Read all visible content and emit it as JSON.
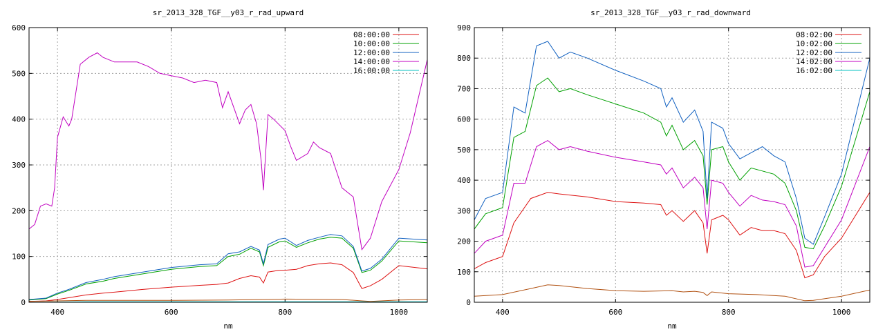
{
  "chart_data": [
    {
      "type": "line",
      "title": "sr_2013_328_TGF__y03_r_rad_upward",
      "xlabel": "nm",
      "ylabel": "",
      "xlim": [
        350,
        1050
      ],
      "ylim": [
        0,
        600
      ],
      "xticks": [
        400,
        600,
        800,
        1000
      ],
      "yticks": [
        0,
        100,
        200,
        300,
        400,
        500,
        600
      ],
      "grid": true,
      "legend_position": "top-right",
      "series": [
        {
          "name": "08:00:00",
          "color": "#dd1111",
          "x": [
            350,
            380,
            400,
            420,
            450,
            480,
            500,
            550,
            600,
            650,
            680,
            700,
            720,
            740,
            755,
            762,
            770,
            790,
            800,
            820,
            840,
            860,
            880,
            900,
            920,
            935,
            950,
            970,
            1000,
            1050
          ],
          "y": [
            2,
            3,
            6,
            10,
            16,
            20,
            22,
            28,
            33,
            37,
            39,
            42,
            52,
            58,
            55,
            42,
            66,
            70,
            70,
            72,
            80,
            84,
            86,
            82,
            65,
            30,
            36,
            50,
            80,
            73
          ]
        },
        {
          "name": "10:00:00",
          "color": "#00a000",
          "x": [
            350,
            380,
            400,
            420,
            450,
            480,
            500,
            550,
            600,
            650,
            680,
            700,
            720,
            740,
            755,
            762,
            770,
            790,
            800,
            820,
            840,
            860,
            880,
            900,
            920,
            935,
            950,
            970,
            1000,
            1050
          ],
          "y": [
            5,
            8,
            18,
            26,
            40,
            46,
            52,
            62,
            72,
            78,
            80,
            100,
            105,
            118,
            110,
            80,
            120,
            132,
            134,
            120,
            130,
            138,
            142,
            140,
            118,
            65,
            70,
            90,
            134,
            130
          ]
        },
        {
          "name": "12:00:00",
          "color": "#1060c0",
          "x": [
            350,
            380,
            400,
            420,
            450,
            480,
            500,
            550,
            600,
            650,
            680,
            700,
            720,
            740,
            755,
            762,
            770,
            790,
            800,
            820,
            840,
            860,
            880,
            900,
            920,
            935,
            950,
            970,
            1000,
            1050
          ],
          "y": [
            6,
            9,
            20,
            28,
            43,
            50,
            56,
            66,
            76,
            82,
            84,
            106,
            110,
            122,
            114,
            84,
            126,
            138,
            140,
            124,
            135,
            142,
            148,
            145,
            122,
            68,
            74,
            94,
            140,
            136
          ]
        },
        {
          "name": "14:00:00",
          "color": "#c000c0",
          "x": [
            350,
            360,
            370,
            380,
            390,
            395,
            400,
            410,
            420,
            425,
            440,
            455,
            470,
            480,
            500,
            520,
            540,
            560,
            580,
            600,
            620,
            640,
            660,
            680,
            690,
            700,
            720,
            730,
            740,
            750,
            758,
            762,
            770,
            780,
            800,
            810,
            820,
            840,
            850,
            860,
            880,
            900,
            920,
            935,
            950,
            970,
            1000,
            1020,
            1050
          ],
          "y": [
            160,
            170,
            210,
            215,
            210,
            250,
            360,
            405,
            385,
            400,
            520,
            535,
            545,
            535,
            525,
            525,
            525,
            515,
            500,
            495,
            490,
            480,
            485,
            480,
            425,
            460,
            390,
            420,
            432,
            390,
            310,
            245,
            410,
            400,
            375,
            340,
            310,
            325,
            350,
            338,
            325,
            250,
            230,
            115,
            140,
            220,
            290,
            370,
            530
          ]
        },
        {
          "name": "16:00:00",
          "color": "#00c0c0",
          "x": [
            350,
            400,
            450,
            500,
            600,
            700,
            800,
            900,
            1000,
            1050
          ],
          "y": [
            0,
            0.5,
            1,
            1,
            1,
            1,
            1,
            1,
            1,
            1
          ]
        },
        {
          "name": "",
          "color": "#b05010",
          "x": [
            350,
            400,
            450,
            500,
            600,
            700,
            760,
            800,
            900,
            935,
            950,
            1000,
            1050
          ],
          "y": [
            2,
            3,
            4,
            4,
            4,
            5,
            6,
            7,
            6,
            3,
            2,
            5,
            6
          ]
        }
      ]
    },
    {
      "type": "line",
      "title": "sr_2013_328_TGF__y03_r_rad_downward",
      "xlabel": "nm",
      "ylabel": "",
      "xlim": [
        350,
        1050
      ],
      "ylim": [
        0,
        900
      ],
      "xticks": [
        400,
        600,
        800,
        1000
      ],
      "yticks": [
        0,
        100,
        200,
        300,
        400,
        500,
        600,
        700,
        800,
        900
      ],
      "grid": true,
      "legend_position": "top-right",
      "series": [
        {
          "name": "08:02:00",
          "color": "#dd1111",
          "x": [
            350,
            370,
            400,
            420,
            450,
            480,
            500,
            550,
            600,
            650,
            680,
            690,
            700,
            720,
            740,
            755,
            762,
            770,
            790,
            800,
            820,
            840,
            860,
            880,
            900,
            920,
            935,
            950,
            970,
            1000,
            1050
          ],
          "y": [
            110,
            130,
            150,
            260,
            340,
            360,
            355,
            345,
            330,
            325,
            320,
            285,
            300,
            265,
            300,
            260,
            160,
            270,
            285,
            270,
            220,
            245,
            235,
            235,
            225,
            170,
            80,
            90,
            150,
            210,
            360
          ]
        },
        {
          "name": "10:02:00",
          "color": "#00a000",
          "x": [
            350,
            370,
            400,
            420,
            440,
            460,
            480,
            500,
            520,
            550,
            600,
            650,
            680,
            690,
            700,
            720,
            740,
            755,
            762,
            770,
            790,
            800,
            820,
            840,
            860,
            880,
            900,
            920,
            935,
            950,
            970,
            1000,
            1050
          ],
          "y": [
            240,
            290,
            310,
            540,
            560,
            710,
            735,
            690,
            700,
            680,
            650,
            620,
            590,
            545,
            580,
            500,
            530,
            480,
            320,
            500,
            510,
            460,
            400,
            440,
            430,
            420,
            390,
            300,
            180,
            175,
            250,
            380,
            690
          ]
        },
        {
          "name": "12:02:00",
          "color": "#1060c0",
          "x": [
            350,
            370,
            400,
            420,
            440,
            460,
            480,
            500,
            520,
            550,
            600,
            650,
            680,
            690,
            700,
            720,
            740,
            755,
            762,
            770,
            790,
            800,
            820,
            840,
            860,
            880,
            900,
            920,
            935,
            950,
            970,
            1000,
            1050
          ],
          "y": [
            270,
            340,
            360,
            640,
            620,
            840,
            855,
            800,
            820,
            800,
            760,
            725,
            700,
            640,
            670,
            590,
            630,
            560,
            340,
            590,
            570,
            520,
            470,
            490,
            510,
            480,
            460,
            340,
            210,
            190,
            280,
            420,
            800
          ]
        },
        {
          "name": "14:02:00",
          "color": "#c000c0",
          "x": [
            350,
            370,
            400,
            420,
            440,
            460,
            480,
            500,
            520,
            550,
            600,
            650,
            680,
            690,
            700,
            720,
            740,
            755,
            762,
            770,
            790,
            800,
            820,
            840,
            860,
            880,
            900,
            920,
            935,
            950,
            970,
            1000,
            1050
          ],
          "y": [
            160,
            200,
            220,
            390,
            390,
            510,
            530,
            500,
            510,
            495,
            475,
            460,
            450,
            420,
            440,
            375,
            410,
            375,
            240,
            400,
            390,
            360,
            315,
            350,
            335,
            330,
            320,
            250,
            115,
            120,
            180,
            270,
            510
          ]
        },
        {
          "name": "16:02:00",
          "color": "#00c0c0",
          "x": [
            350,
            1050
          ],
          "y": [
            0,
            0
          ]
        },
        {
          "name": "",
          "color": "#b05010",
          "x": [
            350,
            400,
            450,
            480,
            500,
            550,
            600,
            650,
            700,
            720,
            740,
            755,
            762,
            770,
            800,
            850,
            900,
            935,
            950,
            1000,
            1050
          ],
          "y": [
            20,
            25,
            45,
            57,
            55,
            45,
            38,
            36,
            38,
            34,
            36,
            32,
            22,
            34,
            28,
            25,
            20,
            5,
            6,
            20,
            40
          ]
        }
      ]
    }
  ]
}
